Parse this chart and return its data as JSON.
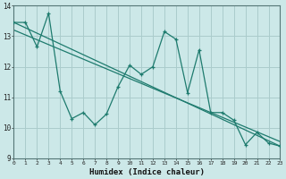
{
  "xlabel": "Humidex (Indice chaleur)",
  "bg_color": "#cce8e8",
  "grid_color": "#aacccc",
  "line_color": "#1e7b6e",
  "xlim": [
    0,
    23
  ],
  "ylim": [
    9,
    14
  ],
  "yticks": [
    9,
    10,
    11,
    12,
    13,
    14
  ],
  "xticks": [
    0,
    1,
    2,
    3,
    4,
    5,
    6,
    7,
    8,
    9,
    10,
    11,
    12,
    13,
    14,
    15,
    16,
    17,
    18,
    19,
    20,
    21,
    22,
    23
  ],
  "series1_x": [
    0,
    1,
    2,
    3,
    4,
    5,
    6,
    7,
    8,
    9,
    10,
    11,
    12,
    13,
    14,
    15,
    16,
    17,
    18,
    19,
    20,
    21,
    22,
    23
  ],
  "series1_y": [
    13.45,
    13.45,
    12.65,
    13.75,
    11.2,
    10.3,
    10.5,
    10.1,
    10.45,
    11.35,
    12.05,
    11.75,
    12.0,
    13.15,
    12.9,
    11.15,
    12.55,
    10.5,
    10.5,
    10.25,
    9.45,
    9.85,
    9.5,
    9.4
  ],
  "trend1_x": [
    0,
    23
  ],
  "trend1_y": [
    13.45,
    9.4
  ],
  "trend2_x": [
    0,
    23
  ],
  "trend2_y": [
    13.2,
    9.55
  ],
  "trend3_x": [
    0,
    23
  ],
  "trend3_y": [
    12.95,
    9.4
  ]
}
